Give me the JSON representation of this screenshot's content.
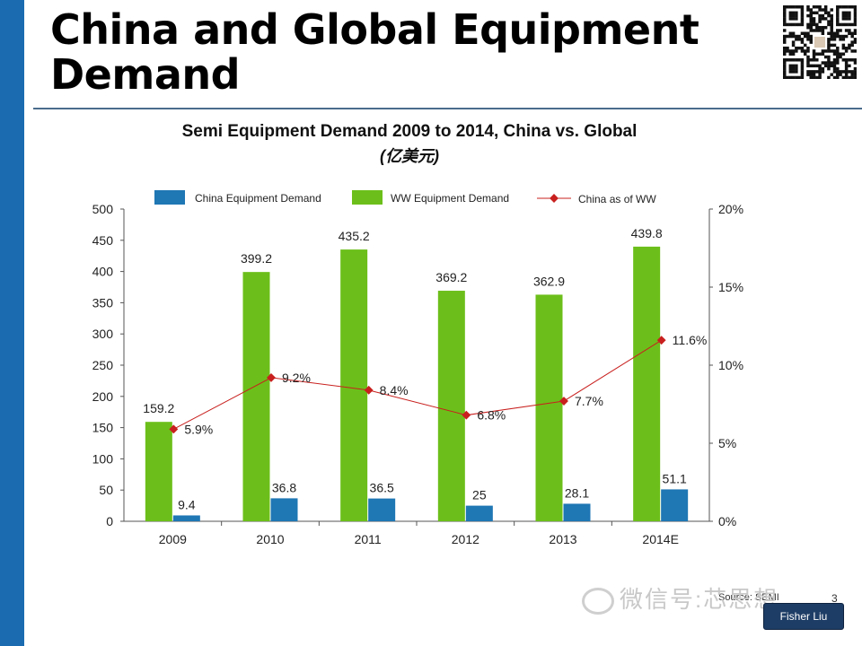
{
  "slide": {
    "title": "China and Global Equipment Demand",
    "watermark_text": "微信号:芯思想",
    "badge_text": "Fisher Liu",
    "source_text": "Source: SEMI",
    "page_number": "3"
  },
  "colors": {
    "left_bar": "#1a6bb0",
    "china_bar": "#1f77b4",
    "ww_bar": "#6cbf1a",
    "ratio_line": "#c8201e"
  },
  "chart_data": {
    "type": "bar",
    "title": "Semi Equipment Demand 2009 to 2014, China  vs. Global",
    "subtitle": "(亿美元)",
    "categories": [
      "2009",
      "2010",
      "2011",
      "2012",
      "2013",
      "2014E"
    ],
    "series": [
      {
        "name": "China Equipment Demand",
        "type": "bar",
        "axis": "left",
        "values": [
          9.4,
          36.8,
          36.5,
          25,
          28.1,
          51.1
        ],
        "labels": [
          "9.4",
          "36.8",
          "36.5",
          "25",
          "28.1",
          "51.1"
        ]
      },
      {
        "name": "WW Equipment Demand",
        "type": "bar",
        "axis": "left",
        "values": [
          159.2,
          399.2,
          435.2,
          369.2,
          362.9,
          439.8
        ],
        "labels": [
          "159.2",
          "399.2",
          "435.2",
          "369.2",
          "362.9",
          "439.8"
        ]
      },
      {
        "name": "China as of WW",
        "type": "line",
        "axis": "right",
        "values": [
          5.9,
          9.2,
          8.4,
          6.8,
          7.7,
          11.6
        ],
        "labels": [
          "5.9%",
          "9.2%",
          "8.4%",
          "6.8%",
          "7.7%",
          "11.6%"
        ]
      }
    ],
    "left_axis": {
      "ylim": [
        0,
        500
      ],
      "ticks": [
        "0",
        "50",
        "100",
        "150",
        "200",
        "250",
        "300",
        "350",
        "400",
        "450",
        "500"
      ]
    },
    "right_axis": {
      "ylim": [
        0,
        20
      ],
      "ticks": [
        "0%",
        "5%",
        "10%",
        "15%",
        "20%"
      ]
    },
    "legend_position": "top",
    "grid": false
  }
}
